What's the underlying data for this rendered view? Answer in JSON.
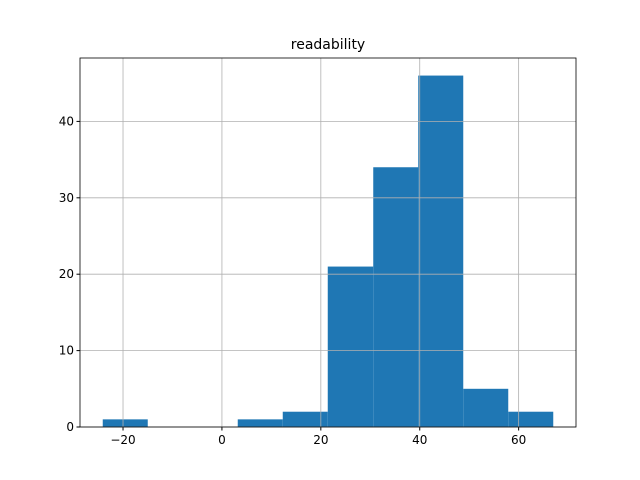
{
  "chart_data": {
    "type": "histogram",
    "title": "readability",
    "bins": [
      -24.1,
      -15.0,
      -5.9,
      3.2,
      12.3,
      21.4,
      30.6,
      39.7,
      48.8,
      57.9,
      67.0
    ],
    "values": [
      1,
      0,
      0,
      1,
      2,
      21,
      34,
      46,
      5,
      2
    ],
    "color": "#1f77b4",
    "xlim": [
      -28.7,
      71.6
    ],
    "ylim": [
      0,
      48.3
    ],
    "xticks": [
      {
        "value": -20,
        "label": "−20"
      },
      0,
      20,
      40,
      60
    ],
    "yticks": [
      0,
      10,
      20,
      30,
      40
    ],
    "grid": true
  }
}
